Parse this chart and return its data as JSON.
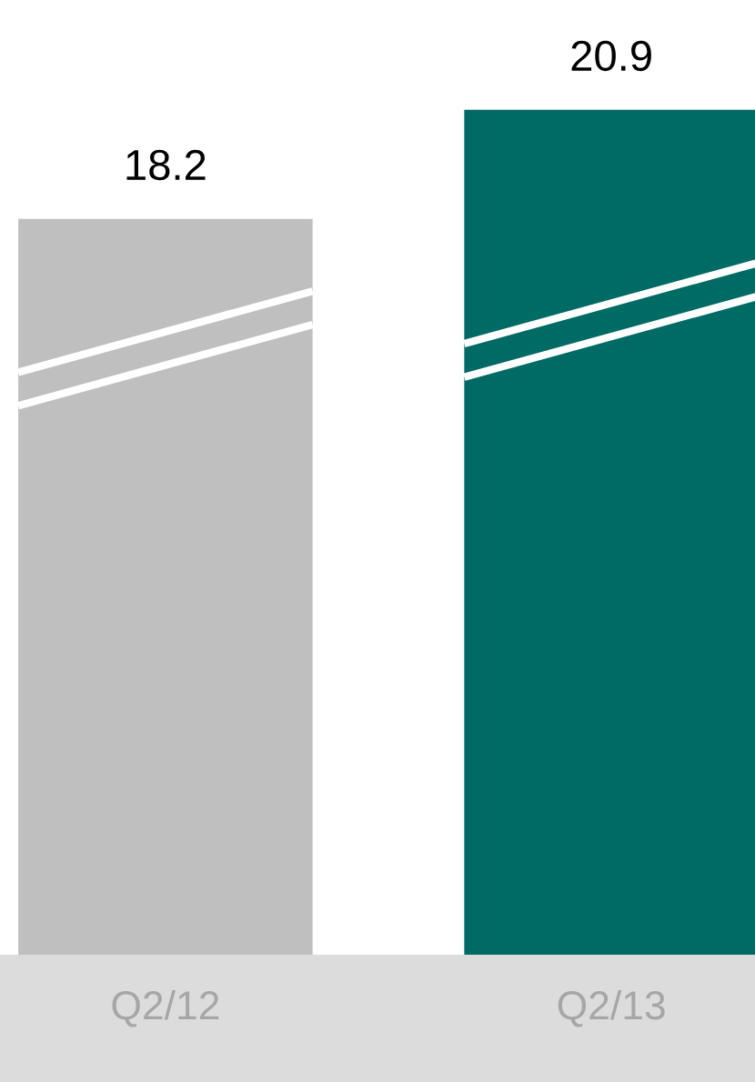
{
  "chart_data": {
    "type": "bar",
    "categories": [
      "Q2/12",
      "Q2/13"
    ],
    "values": [
      18.2,
      20.9
    ],
    "colors": [
      "#bfbfbf",
      "#006a64"
    ],
    "data_labels": true
  }
}
